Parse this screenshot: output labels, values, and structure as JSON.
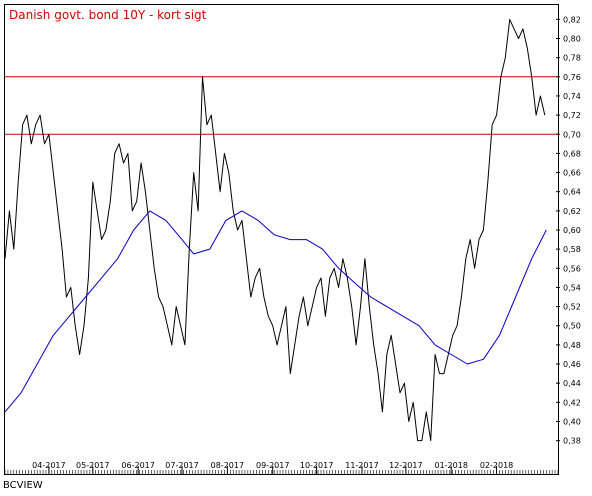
{
  "chart_data": {
    "type": "line",
    "title": "Danish govt. bond 10Y - kort sigt",
    "footer": "BCVIEW",
    "xlabel": "",
    "ylabel": "",
    "ylim": [
      0.365,
      0.835
    ],
    "y_ticks": [
      0.38,
      0.4,
      0.42,
      0.44,
      0.46,
      0.48,
      0.5,
      0.52,
      0.54,
      0.56,
      0.58,
      0.6,
      0.62,
      0.64,
      0.66,
      0.68,
      0.7,
      0.72,
      0.74,
      0.76,
      0.78,
      0.8,
      0.82
    ],
    "y_tick_labels": [
      "0,38",
      "0,40",
      "0,42",
      "0,44",
      "0,46",
      "0,48",
      "0,50",
      "0,52",
      "0,54",
      "0,56",
      "0,58",
      "0,60",
      "0,62",
      "0,64",
      "0,66",
      "0,68",
      "0,70",
      "0,72",
      "0,74",
      "0,76",
      "0,78",
      "0,80",
      "0,82"
    ],
    "x_range": [
      "2017-03-02",
      "2018-03-15"
    ],
    "x_ticks": [
      {
        "date": "2017-04-01",
        "label": "04-2017"
      },
      {
        "date": "2017-05-01",
        "label": "05-2017"
      },
      {
        "date": "2017-06-01",
        "label": "06-2017"
      },
      {
        "date": "2017-07-01",
        "label": "07-2017"
      },
      {
        "date": "2017-08-01",
        "label": "08-2017"
      },
      {
        "date": "2017-09-01",
        "label": "09-2017"
      },
      {
        "date": "2017-10-01",
        "label": "10-2017"
      },
      {
        "date": "2017-11-01",
        "label": "11-2017"
      },
      {
        "date": "2017-12-01",
        "label": "12-2017"
      },
      {
        "date": "2018-01-01",
        "label": "01-2018"
      },
      {
        "date": "2018-02-01",
        "label": "02-2018"
      }
    ],
    "horizontal_lines": [
      {
        "value": 0.76,
        "color": "#d00000"
      },
      {
        "value": 0.7,
        "color": "#d00000"
      }
    ],
    "grid": false,
    "series": [
      {
        "color": "#000000",
        "points": [
          [
            "2017-03-02",
            0.57
          ],
          [
            "2017-03-05",
            0.62
          ],
          [
            "2017-03-08",
            0.58
          ],
          [
            "2017-03-11",
            0.65
          ],
          [
            "2017-03-14",
            0.71
          ],
          [
            "2017-03-17",
            0.72
          ],
          [
            "2017-03-20",
            0.69
          ],
          [
            "2017-03-23",
            0.71
          ],
          [
            "2017-03-26",
            0.72
          ],
          [
            "2017-03-29",
            0.69
          ],
          [
            "2017-04-01",
            0.7
          ],
          [
            "2017-04-04",
            0.66
          ],
          [
            "2017-04-07",
            0.62
          ],
          [
            "2017-04-10",
            0.58
          ],
          [
            "2017-04-13",
            0.53
          ],
          [
            "2017-04-16",
            0.54
          ],
          [
            "2017-04-19",
            0.5
          ],
          [
            "2017-04-22",
            0.47
          ],
          [
            "2017-04-25",
            0.5
          ],
          [
            "2017-04-28",
            0.55
          ],
          [
            "2017-05-01",
            0.65
          ],
          [
            "2017-05-04",
            0.62
          ],
          [
            "2017-05-07",
            0.59
          ],
          [
            "2017-05-10",
            0.6
          ],
          [
            "2017-05-13",
            0.63
          ],
          [
            "2017-05-16",
            0.68
          ],
          [
            "2017-05-19",
            0.69
          ],
          [
            "2017-05-22",
            0.67
          ],
          [
            "2017-05-25",
            0.68
          ],
          [
            "2017-05-28",
            0.62
          ],
          [
            "2017-05-31",
            0.63
          ],
          [
            "2017-06-03",
            0.67
          ],
          [
            "2017-06-06",
            0.64
          ],
          [
            "2017-06-09",
            0.6
          ],
          [
            "2017-06-12",
            0.56
          ],
          [
            "2017-06-15",
            0.53
          ],
          [
            "2017-06-18",
            0.52
          ],
          [
            "2017-06-21",
            0.5
          ],
          [
            "2017-06-24",
            0.48
          ],
          [
            "2017-06-27",
            0.52
          ],
          [
            "2017-06-30",
            0.5
          ],
          [
            "2017-07-03",
            0.48
          ],
          [
            "2017-07-06",
            0.58
          ],
          [
            "2017-07-09",
            0.66
          ],
          [
            "2017-07-12",
            0.62
          ],
          [
            "2017-07-15",
            0.76
          ],
          [
            "2017-07-18",
            0.71
          ],
          [
            "2017-07-21",
            0.72
          ],
          [
            "2017-07-24",
            0.68
          ],
          [
            "2017-07-27",
            0.64
          ],
          [
            "2017-07-30",
            0.68
          ],
          [
            "2017-08-02",
            0.66
          ],
          [
            "2017-08-05",
            0.62
          ],
          [
            "2017-08-08",
            0.6
          ],
          [
            "2017-08-11",
            0.61
          ],
          [
            "2017-08-14",
            0.57
          ],
          [
            "2017-08-17",
            0.53
          ],
          [
            "2017-08-20",
            0.55
          ],
          [
            "2017-08-23",
            0.56
          ],
          [
            "2017-08-26",
            0.53
          ],
          [
            "2017-08-29",
            0.51
          ],
          [
            "2017-09-01",
            0.5
          ],
          [
            "2017-09-04",
            0.48
          ],
          [
            "2017-09-07",
            0.5
          ],
          [
            "2017-09-10",
            0.52
          ],
          [
            "2017-09-13",
            0.45
          ],
          [
            "2017-09-16",
            0.48
          ],
          [
            "2017-09-19",
            0.51
          ],
          [
            "2017-09-22",
            0.53
          ],
          [
            "2017-09-25",
            0.5
          ],
          [
            "2017-09-28",
            0.52
          ],
          [
            "2017-10-01",
            0.54
          ],
          [
            "2017-10-04",
            0.55
          ],
          [
            "2017-10-07",
            0.51
          ],
          [
            "2017-10-10",
            0.55
          ],
          [
            "2017-10-13",
            0.56
          ],
          [
            "2017-10-16",
            0.54
          ],
          [
            "2017-10-19",
            0.57
          ],
          [
            "2017-10-22",
            0.55
          ],
          [
            "2017-10-25",
            0.52
          ],
          [
            "2017-10-28",
            0.48
          ],
          [
            "2017-10-31",
            0.52
          ],
          [
            "2017-11-03",
            0.57
          ],
          [
            "2017-11-06",
            0.52
          ],
          [
            "2017-11-09",
            0.48
          ],
          [
            "2017-11-12",
            0.45
          ],
          [
            "2017-11-15",
            0.41
          ],
          [
            "2017-11-18",
            0.47
          ],
          [
            "2017-11-21",
            0.49
          ],
          [
            "2017-11-24",
            0.46
          ],
          [
            "2017-11-27",
            0.43
          ],
          [
            "2017-11-30",
            0.44
          ],
          [
            "2017-12-03",
            0.4
          ],
          [
            "2017-12-06",
            0.42
          ],
          [
            "2017-12-09",
            0.38
          ],
          [
            "2017-12-12",
            0.38
          ],
          [
            "2017-12-15",
            0.41
          ],
          [
            "2017-12-18",
            0.38
          ],
          [
            "2017-12-21",
            0.47
          ],
          [
            "2017-12-24",
            0.45
          ],
          [
            "2017-12-27",
            0.45
          ],
          [
            "2017-12-30",
            0.47
          ],
          [
            "2018-01-02",
            0.49
          ],
          [
            "2018-01-05",
            0.5
          ],
          [
            "2018-01-08",
            0.53
          ],
          [
            "2018-01-11",
            0.57
          ],
          [
            "2018-01-14",
            0.59
          ],
          [
            "2018-01-17",
            0.56
          ],
          [
            "2018-01-20",
            0.59
          ],
          [
            "2018-01-23",
            0.6
          ],
          [
            "2018-01-26",
            0.65
          ],
          [
            "2018-01-29",
            0.71
          ],
          [
            "2018-02-01",
            0.72
          ],
          [
            "2018-02-04",
            0.76
          ],
          [
            "2018-02-07",
            0.78
          ],
          [
            "2018-02-10",
            0.82
          ],
          [
            "2018-02-13",
            0.81
          ],
          [
            "2018-02-16",
            0.8
          ],
          [
            "2018-02-19",
            0.81
          ],
          [
            "2018-02-22",
            0.79
          ],
          [
            "2018-02-25",
            0.76
          ],
          [
            "2018-02-28",
            0.72
          ],
          [
            "2018-03-03",
            0.74
          ],
          [
            "2018-03-06",
            0.72
          ]
        ]
      },
      {
        "color": "#0000c8",
        "points": [
          [
            "2017-03-02",
            0.41
          ],
          [
            "2017-03-13",
            0.43
          ],
          [
            "2017-03-24",
            0.46
          ],
          [
            "2017-04-04",
            0.49
          ],
          [
            "2017-04-15",
            0.51
          ],
          [
            "2017-04-26",
            0.53
          ],
          [
            "2017-05-07",
            0.55
          ],
          [
            "2017-05-18",
            0.57
          ],
          [
            "2017-05-29",
            0.6
          ],
          [
            "2017-06-09",
            0.62
          ],
          [
            "2017-06-20",
            0.61
          ],
          [
            "2017-07-01",
            0.59
          ],
          [
            "2017-07-09",
            0.575
          ],
          [
            "2017-07-20",
            0.58
          ],
          [
            "2017-07-31",
            0.61
          ],
          [
            "2017-08-11",
            0.62
          ],
          [
            "2017-08-22",
            0.61
          ],
          [
            "2017-09-02",
            0.595
          ],
          [
            "2017-09-13",
            0.59
          ],
          [
            "2017-09-24",
            0.59
          ],
          [
            "2017-10-05",
            0.58
          ],
          [
            "2017-10-16",
            0.56
          ],
          [
            "2017-10-27",
            0.545
          ],
          [
            "2017-11-07",
            0.53
          ],
          [
            "2017-11-18",
            0.52
          ],
          [
            "2017-11-29",
            0.51
          ],
          [
            "2017-12-10",
            0.5
          ],
          [
            "2017-12-21",
            0.48
          ],
          [
            "2018-01-01",
            0.47
          ],
          [
            "2018-01-12",
            0.46
          ],
          [
            "2018-01-23",
            0.465
          ],
          [
            "2018-02-03",
            0.49
          ],
          [
            "2018-02-14",
            0.53
          ],
          [
            "2018-02-25",
            0.57
          ],
          [
            "2018-03-07",
            0.6
          ]
        ]
      }
    ]
  }
}
